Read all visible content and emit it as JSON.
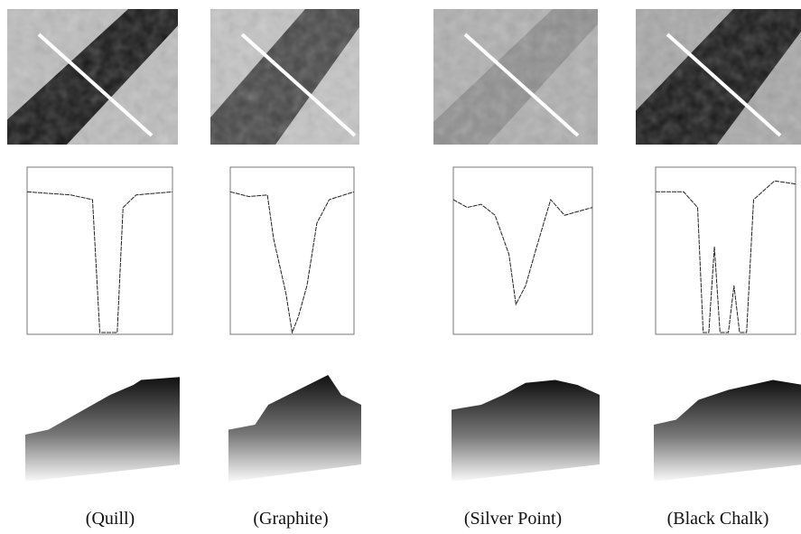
{
  "figure": {
    "captions": [
      "(Quill)",
      "(Graphite)",
      "(Silver Point)",
      "(Black Chalk)"
    ]
  }
}
